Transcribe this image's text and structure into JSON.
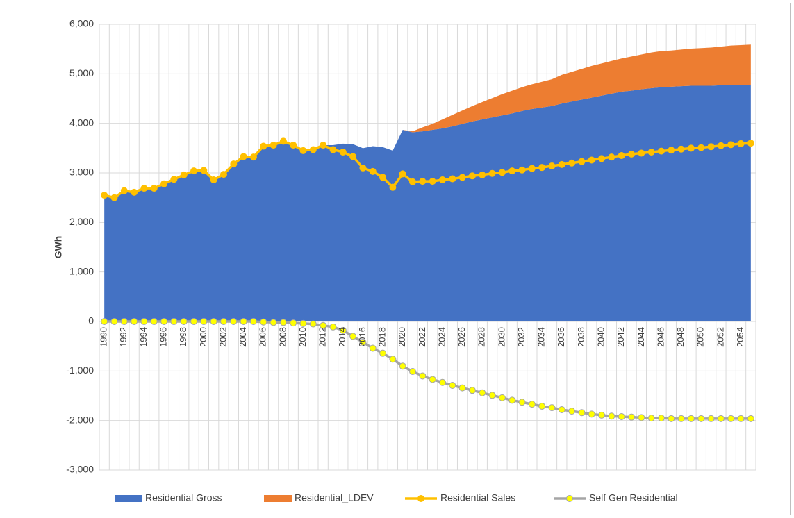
{
  "chart_data": {
    "type": "combo",
    "y_axis_label": "GWh",
    "categories": [
      "1990",
      null,
      "1992",
      null,
      "1994",
      null,
      "1996",
      null,
      "1998",
      null,
      "2000",
      null,
      "2002",
      null,
      "2004",
      null,
      "2006",
      null,
      "2008",
      null,
      "2010",
      null,
      "2012",
      null,
      "2014",
      null,
      "2016",
      null,
      "2018",
      null,
      "2020",
      null,
      "2022",
      null,
      "2024",
      null,
      "2026",
      null,
      "2028",
      null,
      "2030",
      null,
      "2032",
      null,
      "2034",
      null,
      "2036",
      null,
      "2038",
      null,
      "2040",
      null,
      "2042",
      null,
      "2044",
      null,
      "2046",
      null,
      "2048",
      null,
      "2050",
      null,
      "2052",
      null,
      "2054",
      null
    ],
    "ylim": [
      -3000,
      6000
    ],
    "yticks": [
      {
        "value": -3000,
        "label": "-3,000"
      },
      {
        "value": -2000,
        "label": "-2,000"
      },
      {
        "value": -1000,
        "label": "-1,000"
      },
      0,
      {
        "value": 1000,
        "label": "1,000"
      },
      {
        "value": 2000,
        "label": "2,000"
      },
      {
        "value": 3000,
        "label": "3,000"
      },
      {
        "value": 4000,
        "label": "4,000"
      },
      {
        "value": 5000,
        "label": "5,000"
      },
      {
        "value": 6000,
        "label": "6,000"
      }
    ],
    "grid": true,
    "legend": "bottom",
    "series": [
      {
        "name": "Residential Gross",
        "type": "area",
        "stack": true,
        "color": "#4472c4",
        "values": [
          2550,
          2500,
          2640,
          2610,
          2690,
          2690,
          2780,
          2870,
          2960,
          3040,
          3050,
          2860,
          2970,
          3180,
          3330,
          3320,
          3540,
          3560,
          3640,
          3560,
          3450,
          3470,
          3560,
          3560,
          3590,
          3580,
          3500,
          3540,
          3520,
          3450,
          3870,
          3820,
          3840,
          3870,
          3900,
          3940,
          3990,
          4040,
          4080,
          4120,
          4160,
          4200,
          4250,
          4290,
          4320,
          4350,
          4400,
          4440,
          4480,
          4520,
          4560,
          4600,
          4640,
          4660,
          4690,
          4710,
          4730,
          4740,
          4750,
          4760,
          4760,
          4760,
          4770,
          4770,
          4770,
          4770
        ]
      },
      {
        "name": "Residential_LDEV",
        "type": "area",
        "stack": true,
        "color": "#ed7d31",
        "values": [
          0,
          0,
          0,
          0,
          0,
          0,
          0,
          0,
          0,
          0,
          0,
          0,
          0,
          0,
          0,
          0,
          0,
          0,
          0,
          0,
          0,
          0,
          0,
          0,
          0,
          0,
          0,
          0,
          0,
          0,
          0,
          20,
          80,
          120,
          180,
          230,
          270,
          310,
          350,
          390,
          430,
          460,
          480,
          500,
          520,
          540,
          580,
          600,
          620,
          640,
          650,
          660,
          670,
          690,
          700,
          720,
          730,
          730,
          740,
          750,
          760,
          770,
          780,
          800,
          810,
          820
        ]
      },
      {
        "name": "Residential Sales",
        "type": "line",
        "color": "#ffc000",
        "marker_color": "#ffc000",
        "values": [
          2550,
          2500,
          2640,
          2610,
          2690,
          2690,
          2780,
          2870,
          2960,
          3040,
          3050,
          2860,
          2970,
          3180,
          3330,
          3320,
          3540,
          3560,
          3640,
          3560,
          3450,
          3470,
          3560,
          3470,
          3420,
          3330,
          3100,
          3030,
          2910,
          2710,
          2980,
          2820,
          2830,
          2830,
          2860,
          2880,
          2910,
          2940,
          2960,
          2990,
          3010,
          3040,
          3060,
          3090,
          3110,
          3140,
          3170,
          3200,
          3230,
          3260,
          3290,
          3320,
          3350,
          3380,
          3400,
          3420,
          3440,
          3460,
          3480,
          3500,
          3510,
          3530,
          3550,
          3570,
          3590,
          3600
        ]
      },
      {
        "name": "Self Gen Residential",
        "type": "line",
        "color": "#a5a5a5",
        "marker_color": "#ffff00",
        "values": [
          0,
          0,
          0,
          0,
          0,
          0,
          0,
          0,
          0,
          0,
          0,
          0,
          0,
          0,
          0,
          0,
          -10,
          -20,
          -20,
          -30,
          -40,
          -50,
          -80,
          -110,
          -180,
          -300,
          -420,
          -540,
          -640,
          -760,
          -900,
          -1010,
          -1100,
          -1170,
          -1230,
          -1290,
          -1340,
          -1390,
          -1440,
          -1490,
          -1540,
          -1590,
          -1630,
          -1670,
          -1710,
          -1740,
          -1780,
          -1810,
          -1840,
          -1870,
          -1890,
          -1910,
          -1920,
          -1930,
          -1940,
          -1950,
          -1950,
          -1960,
          -1960,
          -1960,
          -1960,
          -1960,
          -1960,
          -1960,
          -1960,
          -1960
        ]
      }
    ]
  }
}
